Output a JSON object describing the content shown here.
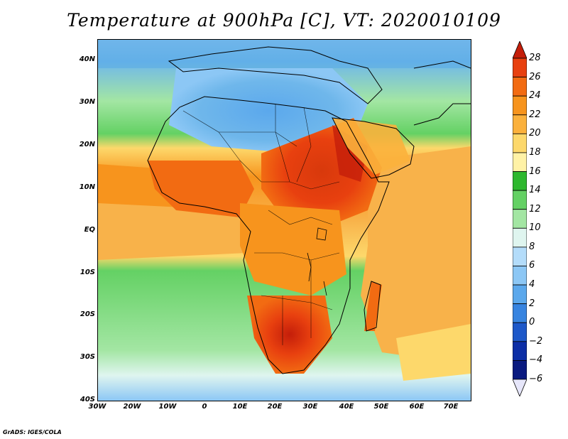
{
  "title": "Temperature at 900hPa [C], VT: 2020010109",
  "credit": "GrADS: IGES/COLA",
  "lat_ticks": [
    "40N",
    "30N",
    "20N",
    "10N",
    "EQ",
    "10S",
    "20S",
    "30S",
    "40S"
  ],
  "lon_ticks": [
    "30W",
    "20W",
    "10W",
    "0",
    "10E",
    "20E",
    "30E",
    "40E",
    "50E",
    "60E",
    "70E"
  ],
  "colorbar": {
    "labels": [
      "28",
      "26",
      "24",
      "22",
      "20",
      "18",
      "16",
      "14",
      "12",
      "10",
      "8",
      "6",
      "4",
      "2",
      "0",
      "−2",
      "−4",
      "−6"
    ],
    "colors": [
      "#c41e0a",
      "#e8400f",
      "#f26b12",
      "#f7941d",
      "#fbb13c",
      "#fdd86b",
      "#fff2a6",
      "#2eb82e",
      "#64d164",
      "#a3e6a3",
      "#dff5ef",
      "#b3dcfa",
      "#8cc7f5",
      "#5ba8ec",
      "#3784e0",
      "#1d58c9",
      "#0c2ea6",
      "#0a1a80",
      "#e6e6fa"
    ]
  },
  "colors": {
    "ocean_north": "#57a9e5",
    "land_north": "#64a9eb",
    "land_tropics": "#f07c17",
    "land_south_hot": "#d8390c",
    "ocean_south": "#64d164",
    "ocean_tropics": "#f8b24a"
  }
}
